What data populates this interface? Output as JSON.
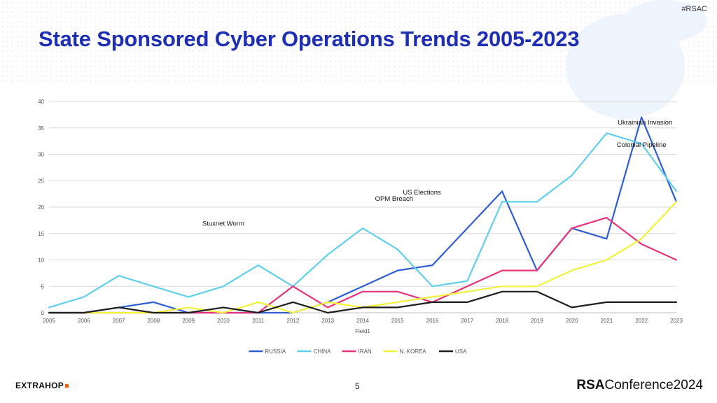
{
  "slide": {
    "hashtag": "#RSAC",
    "title": "State Sponsored Cyber Operations Trends 2005-2023",
    "page_number": "5",
    "footer_left_logo": "EXTRAHOP",
    "footer_right_logo_bold": "RSA",
    "footer_right_logo_rest": "Conference2024"
  },
  "colors": {
    "title": "#1f2fb4",
    "russia": "#2e5ed4",
    "china": "#5fcfec",
    "iran": "#e6347a",
    "nkorea": "#f2f23c",
    "usa": "#1d1d1d"
  },
  "chart_data": {
    "type": "line",
    "title": "",
    "xlabel": "Field1",
    "ylabel": "",
    "ylim": [
      0,
      40
    ],
    "yticks": [
      0,
      5,
      10,
      15,
      20,
      25,
      30,
      35,
      40
    ],
    "categories": [
      "2005",
      "2006",
      "2007",
      "2008",
      "2009",
      "2010",
      "2011",
      "2012",
      "2013",
      "2014",
      "2015",
      "2016",
      "2017",
      "2018",
      "2019",
      "2020",
      "2021",
      "2022",
      "2023"
    ],
    "series": [
      {
        "name": "RUSSIA",
        "color": "#2e5ed4",
        "values": [
          0,
          0,
          1,
          2,
          0,
          0,
          0,
          0,
          2,
          5,
          8,
          9,
          16,
          23,
          8,
          16,
          14,
          37,
          21
        ]
      },
      {
        "name": "CHINA",
        "color": "#5fcfec",
        "values": [
          1,
          3,
          7,
          5,
          3,
          5,
          9,
          5,
          11,
          16,
          12,
          5,
          6,
          21,
          21,
          26,
          34,
          32,
          23
        ]
      },
      {
        "name": "IRAN",
        "color": "#e6347a",
        "values": [
          0,
          0,
          0,
          0,
          0,
          0,
          0,
          5,
          1,
          4,
          4,
          2,
          5,
          8,
          8,
          16,
          18,
          13,
          10
        ]
      },
      {
        "name": "N. KOREA",
        "color": "#f2f23c",
        "values": [
          0,
          0,
          0,
          0,
          1,
          0,
          2,
          0,
          2,
          1,
          2,
          3,
          4,
          5,
          5,
          8,
          10,
          14,
          21
        ]
      },
      {
        "name": "USA",
        "color": "#1d1d1d",
        "values": [
          0,
          0,
          1,
          0,
          0,
          1,
          0,
          2,
          0,
          1,
          1,
          2,
          2,
          4,
          4,
          1,
          2,
          2,
          2
        ]
      }
    ],
    "annotations": [
      {
        "text": "Stuxnet Worm",
        "x": "2010",
        "y": 16.5
      },
      {
        "text": "OPM Breach",
        "x": "2014.9",
        "y": 21.2
      },
      {
        "text": "US Elections",
        "x": "2015.7",
        "y": 22.4
      },
      {
        "text": "Colonial Pipeline",
        "x": "2022",
        "y": 31.4
      },
      {
        "text": "Ukrainian Invasion",
        "x": "2022.1",
        "y": 35.6
      }
    ],
    "legend": "bottom"
  }
}
